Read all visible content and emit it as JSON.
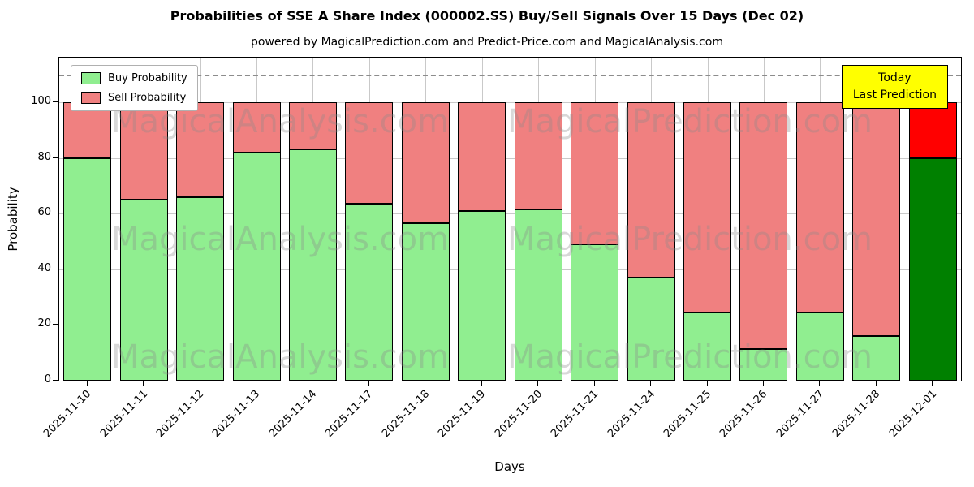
{
  "title": "Probabilities of SSE A Share Index (000002.SS) Buy/Sell Signals Over 15 Days (Dec 02)",
  "subtitle": "powered by MagicalPrediction.com and Predict-Price.com and MagicalAnalysis.com",
  "legend": {
    "buy": "Buy Probability",
    "sell": "Sell Probability"
  },
  "annotation": {
    "line1": "Today",
    "line2": "Last Prediction"
  },
  "watermark_texts": [
    "MagicalAnalysis.com",
    "MagicalPrediction.com"
  ],
  "colors": {
    "buy": "#90ee90",
    "sell": "#f08080",
    "today_buy": "#008000",
    "today_sell": "#ff0000",
    "annotation_bg": "#ffff00"
  },
  "chart_data": {
    "type": "bar",
    "stacked": true,
    "title": "Probabilities of SSE A Share Index (000002.SS) Buy/Sell Signals Over 15 Days (Dec 02)",
    "xlabel": "Days",
    "ylabel": "Probability",
    "categories": [
      "2025-11-10",
      "2025-11-11",
      "2025-11-12",
      "2025-11-13",
      "2025-11-14",
      "2025-11-17",
      "2025-11-18",
      "2025-11-19",
      "2025-11-20",
      "2025-11-21",
      "2025-11-24",
      "2025-11-25",
      "2025-11-26",
      "2025-11-27",
      "2025-11-28",
      "2025-12-01"
    ],
    "series": [
      {
        "name": "Buy Probability",
        "values": [
          80,
          65,
          66,
          82,
          83,
          63.5,
          56.5,
          61,
          61.5,
          49,
          37,
          24.5,
          11.5,
          24.5,
          16,
          80
        ]
      },
      {
        "name": "Sell Probability",
        "values": [
          20,
          35,
          34,
          18,
          17,
          36.5,
          43.5,
          39,
          38.5,
          51,
          63,
          75.5,
          88.5,
          75.5,
          84,
          20
        ]
      }
    ],
    "ylim": [
      0,
      116
    ],
    "yticks": [
      0,
      20,
      40,
      60,
      80,
      100
    ],
    "dashed_line_y": 110,
    "grid": true,
    "legend_position": "upper left",
    "highlighted_category": "2025-12-01"
  }
}
